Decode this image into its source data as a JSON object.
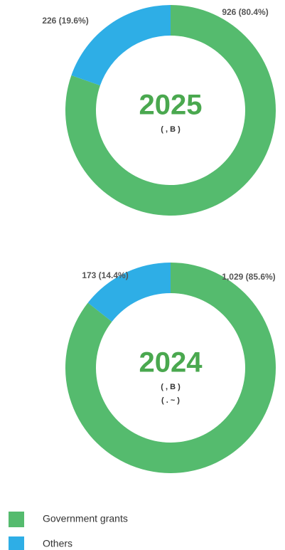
{
  "chart_data": [
    {
      "type": "pie",
      "title": "2025",
      "notes": [
        "( , B )"
      ],
      "categories": [
        "Government grants",
        "Others"
      ],
      "values": [
        926,
        226
      ],
      "value_labels": [
        "926 (80.4%)",
        "226 (19.6%)"
      ],
      "colors": [
        "#55bb6e",
        "#2eaee6"
      ]
    },
    {
      "type": "pie",
      "title": "2024",
      "notes": [
        "( , B )",
        "( . ~ )"
      ],
      "categories": [
        "Government grants",
        "Others"
      ],
      "values": [
        1029,
        173
      ],
      "value_labels": [
        "1,029 (85.6%)",
        "173 (14.4%)"
      ],
      "colors": [
        "#55bb6e",
        "#2eaee6"
      ]
    }
  ]
}
